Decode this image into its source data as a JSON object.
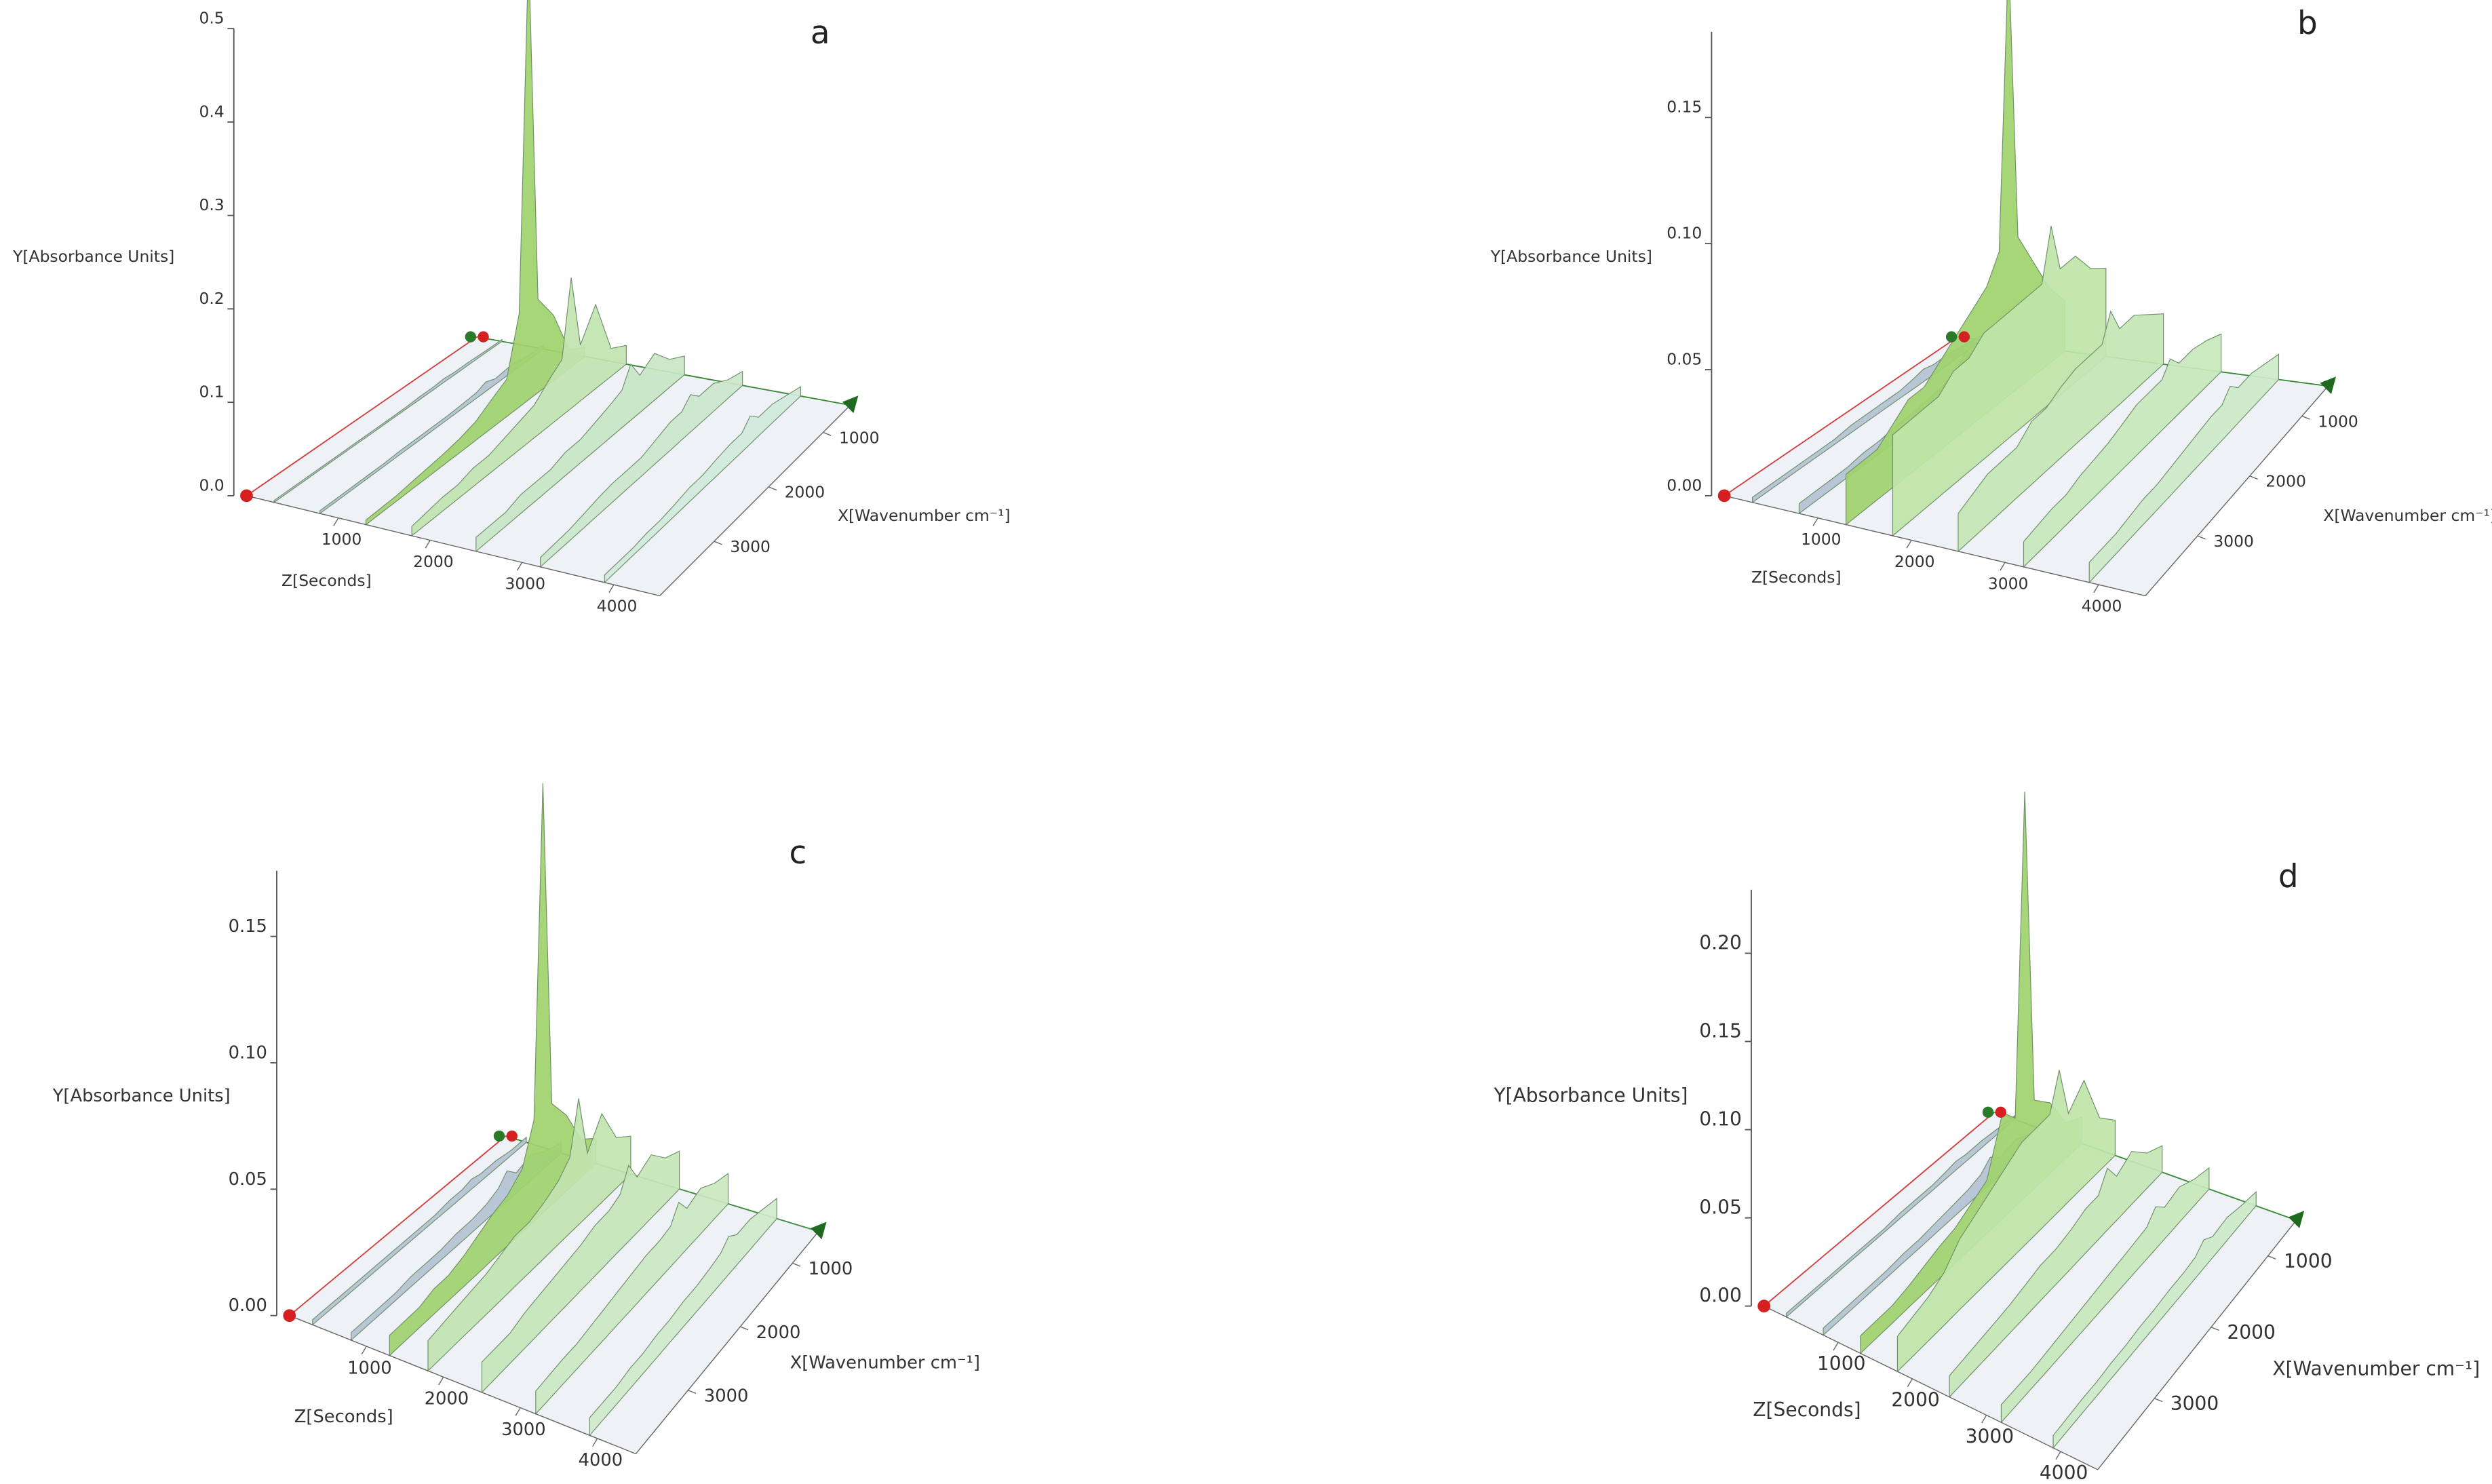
{
  "chart_data": [
    {
      "type": "surface3d",
      "title": "a",
      "y_label": "Y[Absorbance Units]",
      "x_label": "X[Wavenumber cm⁻¹]",
      "z_label": "Z[Seconds]",
      "xlim": [
        500,
        4000
      ],
      "zlim": [
        0,
        4500
      ],
      "ylim": [
        0,
        0.5
      ],
      "xticks": [
        1000,
        2000,
        3000
      ],
      "zticks": [
        1000,
        2000,
        3000,
        4000
      ],
      "yticks": [
        {
          "value": 0,
          "label": "0.0"
        },
        0.1,
        0.2,
        0.3,
        0.4,
        0.5
      ],
      "x": [
        500,
        750,
        1000,
        1250,
        1400,
        1550,
        1750,
        2000,
        2250,
        2500,
        2750,
        3000,
        3250,
        3500,
        4000
      ],
      "series": [
        {
          "z": 300,
          "color": "#b4c2d2",
          "values": [
            0.002,
            0.002,
            0.003,
            0.003,
            0.004,
            0.003,
            0.003,
            0.002,
            0.002,
            0.002,
            0.002,
            0.002,
            0.002,
            0.002,
            0.002
          ]
        },
        {
          "z": 800,
          "color": "#b4c2d2",
          "values": [
            0.004,
            0.005,
            0.008,
            0.006,
            0.01,
            0.006,
            0.005,
            0.004,
            0.004,
            0.004,
            0.004,
            0.003,
            0.003,
            0.003,
            0.003
          ]
        },
        {
          "z": 1300,
          "color": "#9fd36e",
          "values": [
            0.01,
            0.02,
            0.07,
            0.1,
            0.48,
            0.1,
            0.04,
            0.03,
            0.02,
            0.015,
            0.012,
            0.01,
            0.008,
            0.006,
            0.005
          ]
        },
        {
          "z": 1800,
          "color": "#c2e4b0",
          "values": [
            0.02,
            0.03,
            0.09,
            0.06,
            0.14,
            0.06,
            0.05,
            0.035,
            0.03,
            0.025,
            0.02,
            0.02,
            0.015,
            0.015,
            0.01
          ]
        },
        {
          "z": 2500,
          "color": "#c8e6c4",
          "values": [
            0.02,
            0.03,
            0.05,
            0.04,
            0.06,
            0.04,
            0.035,
            0.03,
            0.025,
            0.025,
            0.02,
            0.02,
            0.02,
            0.015,
            0.015
          ]
        },
        {
          "z": 3200,
          "color": "#cbe7cc",
          "values": [
            0.015,
            0.02,
            0.03,
            0.03,
            0.04,
            0.03,
            0.03,
            0.025,
            0.02,
            0.02,
            0.02,
            0.018,
            0.015,
            0.012,
            0.01
          ]
        },
        {
          "z": 3900,
          "color": "#d0eadb",
          "values": [
            0.01,
            0.015,
            0.02,
            0.02,
            0.03,
            0.02,
            0.02,
            0.018,
            0.015,
            0.015,
            0.012,
            0.01,
            0.01,
            0.008,
            0.008
          ]
        }
      ]
    },
    {
      "type": "surface3d",
      "title": "b",
      "y_label": "Y[Absorbance Units]",
      "x_label": "X[Wavenumber cm⁻¹]",
      "z_label": "Z[Seconds]",
      "xlim": [
        500,
        4000
      ],
      "zlim": [
        0,
        4500
      ],
      "ylim": [
        0,
        0.184
      ],
      "xticks": [
        1000,
        2000,
        3000
      ],
      "zticks": [
        1000,
        2000,
        3000,
        4000
      ],
      "yticks": [
        {
          "value": 0,
          "label": "0.00"
        },
        0.05,
        {
          "value": 0.1,
          "label": "0.10"
        },
        0.15
      ],
      "x": [
        500,
        750,
        1000,
        1250,
        1400,
        1550,
        1750,
        2000,
        2250,
        2500,
        2750,
        3000,
        3250,
        3500,
        4000
      ],
      "series": [
        {
          "z": 300,
          "color": "#b4c2d2",
          "values": [
            0.002,
            0.003,
            0.004,
            0.004,
            0.005,
            0.004,
            0.003,
            0.003,
            0.003,
            0.003,
            0.002,
            0.002,
            0.002,
            0.002,
            0.002
          ]
        },
        {
          "z": 800,
          "color": "#b4c2d2",
          "values": [
            0.005,
            0.008,
            0.012,
            0.01,
            0.015,
            0.01,
            0.008,
            0.007,
            0.006,
            0.006,
            0.005,
            0.005,
            0.004,
            0.004,
            0.004
          ]
        },
        {
          "z": 1300,
          "color": "#9fd36e",
          "values": [
            0.02,
            0.03,
            0.045,
            0.06,
            0.175,
            0.06,
            0.05,
            0.045,
            0.04,
            0.035,
            0.03,
            0.03,
            0.025,
            0.02,
            0.02
          ]
        },
        {
          "z": 1800,
          "color": "#bfe5a8",
          "values": [
            0.035,
            0.04,
            0.05,
            0.05,
            0.07,
            0.05,
            0.05,
            0.05,
            0.05,
            0.05,
            0.045,
            0.045,
            0.04,
            0.04,
            0.04
          ]
        },
        {
          "z": 2500,
          "color": "#c4e6b4",
          "values": [
            0.02,
            0.025,
            0.03,
            0.03,
            0.04,
            0.03,
            0.03,
            0.03,
            0.028,
            0.025,
            0.025,
            0.02,
            0.02,
            0.02,
            0.015
          ]
        },
        {
          "z": 3200,
          "color": "#c8e8bc",
          "values": [
            0.015,
            0.018,
            0.02,
            0.02,
            0.025,
            0.02,
            0.02,
            0.02,
            0.018,
            0.016,
            0.015,
            0.014,
            0.012,
            0.012,
            0.01
          ]
        },
        {
          "z": 3900,
          "color": "#cdeac8",
          "values": [
            0.01,
            0.012,
            0.014,
            0.014,
            0.018,
            0.014,
            0.014,
            0.013,
            0.012,
            0.011,
            0.01,
            0.01,
            0.009,
            0.008,
            0.008
          ]
        }
      ]
    },
    {
      "type": "surface3d",
      "title": "c",
      "y_label": "Y[Absorbance Units]",
      "x_label": "X[Wavenumber cm⁻¹]",
      "z_label": "Z[Seconds]",
      "xlim": [
        500,
        4000
      ],
      "zlim": [
        0,
        4500
      ],
      "ylim": [
        0,
        0.176
      ],
      "xticks": [
        1000,
        2000,
        3000
      ],
      "zticks": [
        1000,
        2000,
        3000,
        4000
      ],
      "yticks": [
        {
          "value": 0,
          "label": "0.00"
        },
        0.05,
        {
          "value": 0.1,
          "label": "0.10"
        },
        0.15
      ],
      "x": [
        500,
        750,
        1000,
        1250,
        1400,
        1550,
        1750,
        2000,
        2250,
        2500,
        2750,
        3000,
        3250,
        3500,
        4000
      ],
      "series": [
        {
          "z": 300,
          "color": "#b4c2d2",
          "values": [
            0.002,
            0.002,
            0.003,
            0.003,
            0.004,
            0.003,
            0.003,
            0.002,
            0.002,
            0.002,
            0.002,
            0.002,
            0.002,
            0.002,
            0.002
          ]
        },
        {
          "z": 800,
          "color": "#b4c2d2",
          "values": [
            0.004,
            0.006,
            0.01,
            0.008,
            0.012,
            0.008,
            0.006,
            0.005,
            0.005,
            0.004,
            0.004,
            0.004,
            0.003,
            0.003,
            0.003
          ]
        },
        {
          "z": 1300,
          "color": "#9fd36e",
          "values": [
            0.01,
            0.015,
            0.03,
            0.04,
            0.17,
            0.04,
            0.025,
            0.02,
            0.018,
            0.015,
            0.012,
            0.01,
            0.01,
            0.008,
            0.008
          ]
        },
        {
          "z": 1800,
          "color": "#c2e4b0",
          "values": [
            0.015,
            0.02,
            0.035,
            0.025,
            0.05,
            0.03,
            0.025,
            0.022,
            0.02,
            0.02,
            0.018,
            0.016,
            0.015,
            0.014,
            0.012
          ]
        },
        {
          "z": 2500,
          "color": "#c6e6b8",
          "values": [
            0.015,
            0.018,
            0.025,
            0.022,
            0.03,
            0.022,
            0.02,
            0.02,
            0.018,
            0.017,
            0.016,
            0.015,
            0.014,
            0.012,
            0.012
          ]
        },
        {
          "z": 3200,
          "color": "#cae8c0",
          "values": [
            0.012,
            0.014,
            0.018,
            0.016,
            0.022,
            0.016,
            0.015,
            0.015,
            0.014,
            0.013,
            0.012,
            0.011,
            0.01,
            0.01,
            0.009
          ]
        },
        {
          "z": 3900,
          "color": "#cfeacb",
          "values": [
            0.008,
            0.01,
            0.012,
            0.012,
            0.015,
            0.012,
            0.011,
            0.01,
            0.01,
            0.009,
            0.009,
            0.008,
            0.008,
            0.007,
            0.007
          ]
        }
      ]
    },
    {
      "type": "surface3d",
      "title": "d",
      "y_label": "Y[Absorbance Units]",
      "x_label": "X[Wavenumber cm⁻¹]",
      "z_label": "Z[Seconds]",
      "xlim": [
        500,
        4000
      ],
      "zlim": [
        0,
        4500
      ],
      "ylim": [
        0,
        0.236
      ],
      "xticks": [
        1000,
        2000,
        3000
      ],
      "zticks": [
        1000,
        2000,
        3000,
        4000
      ],
      "yticks": [
        {
          "value": 0,
          "label": "0.00"
        },
        0.05,
        {
          "value": 0.1,
          "label": "0.10"
        },
        0.15,
        {
          "value": 0.2,
          "label": "0.20"
        }
      ],
      "x": [
        500,
        750,
        1000,
        1250,
        1400,
        1550,
        1750,
        2000,
        2250,
        2500,
        2750,
        3000,
        3250,
        3500,
        4000
      ],
      "series": [
        {
          "z": 300,
          "color": "#b4c2d2",
          "values": [
            0.002,
            0.003,
            0.004,
            0.004,
            0.005,
            0.004,
            0.003,
            0.003,
            0.003,
            0.002,
            0.002,
            0.002,
            0.002,
            0.002,
            0.002
          ]
        },
        {
          "z": 800,
          "color": "#b4c2d2",
          "values": [
            0.005,
            0.007,
            0.012,
            0.01,
            0.015,
            0.01,
            0.008,
            0.007,
            0.006,
            0.005,
            0.005,
            0.004,
            0.004,
            0.004,
            0.004
          ]
        },
        {
          "z": 1300,
          "color": "#9fd36e",
          "values": [
            0.015,
            0.02,
            0.04,
            0.05,
            0.23,
            0.05,
            0.06,
            0.03,
            0.025,
            0.02,
            0.018,
            0.015,
            0.012,
            0.01,
            0.01
          ]
        },
        {
          "z": 1800,
          "color": "#bfe5a8",
          "values": [
            0.02,
            0.03,
            0.06,
            0.05,
            0.08,
            0.06,
            0.06,
            0.06,
            0.055,
            0.05,
            0.045,
            0.04,
            0.03,
            0.025,
            0.02
          ]
        },
        {
          "z": 2500,
          "color": "#c4e6b4",
          "values": [
            0.015,
            0.02,
            0.03,
            0.025,
            0.035,
            0.025,
            0.025,
            0.022,
            0.02,
            0.02,
            0.018,
            0.016,
            0.015,
            0.014,
            0.012
          ]
        },
        {
          "z": 3200,
          "color": "#c8e8bc",
          "values": [
            0.012,
            0.015,
            0.02,
            0.018,
            0.024,
            0.018,
            0.017,
            0.016,
            0.015,
            0.014,
            0.013,
            0.012,
            0.011,
            0.01,
            0.01
          ]
        },
        {
          "z": 3900,
          "color": "#cdeac8",
          "values": [
            0.008,
            0.01,
            0.013,
            0.012,
            0.016,
            0.012,
            0.011,
            0.011,
            0.01,
            0.01,
            0.009,
            0.009,
            0.008,
            0.008,
            0.007
          ]
        }
      ]
    }
  ]
}
